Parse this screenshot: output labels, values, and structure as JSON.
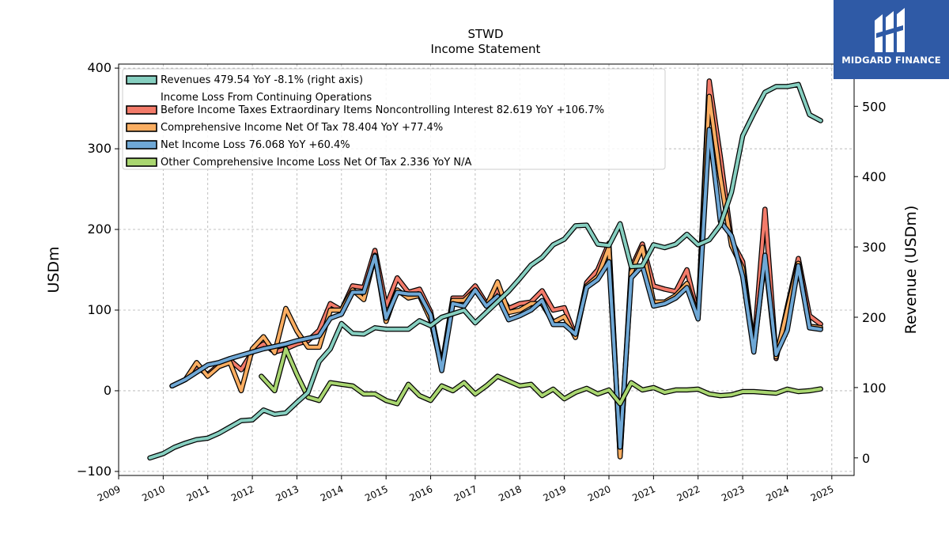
{
  "chart_data": {
    "type": "line",
    "title": "STWD",
    "subtitle": "Income Statement",
    "ylabel": "USDm",
    "y2label": "Revenue (USDm)",
    "ylim": [
      -105,
      405
    ],
    "y2lim": [
      -25,
      560
    ],
    "xlim": [
      2009.0,
      2025.5
    ],
    "grid": true,
    "legend_position": "top-left",
    "x_ticks": [
      2009,
      2010,
      2011,
      2012,
      2013,
      2014,
      2015,
      2016,
      2017,
      2018,
      2019,
      2020,
      2021,
      2022,
      2023,
      2024,
      2025
    ],
    "y_ticks": [
      -100,
      0,
      100,
      200,
      300,
      400
    ],
    "y2_ticks": [
      0,
      100,
      200,
      300,
      400,
      500
    ],
    "series": [
      {
        "name": "Revenues  479.54 YoY -8.1% (right axis)",
        "axis": "right",
        "color": "#86cfc0",
        "points": [
          [
            2009.7,
            0
          ],
          [
            2010.0,
            6
          ],
          [
            2010.25,
            15
          ],
          [
            2010.5,
            21
          ],
          [
            2010.75,
            26
          ],
          [
            2011.0,
            28
          ],
          [
            2011.25,
            35
          ],
          [
            2011.5,
            44
          ],
          [
            2011.75,
            53
          ],
          [
            2012.0,
            54
          ],
          [
            2012.25,
            68
          ],
          [
            2012.5,
            62
          ],
          [
            2012.75,
            64
          ],
          [
            2013.0,
            79
          ],
          [
            2013.25,
            93
          ],
          [
            2013.5,
            137
          ],
          [
            2013.75,
            155
          ],
          [
            2014.0,
            191
          ],
          [
            2014.25,
            177
          ],
          [
            2014.5,
            176
          ],
          [
            2014.75,
            185
          ],
          [
            2015.0,
            183
          ],
          [
            2015.25,
            183
          ],
          [
            2015.5,
            183
          ],
          [
            2015.75,
            195
          ],
          [
            2016.0,
            188
          ],
          [
            2016.25,
            200
          ],
          [
            2016.5,
            205
          ],
          [
            2016.75,
            210
          ],
          [
            2017.0,
            192
          ],
          [
            2017.25,
            207
          ],
          [
            2017.5,
            222
          ],
          [
            2017.75,
            237
          ],
          [
            2018.0,
            255
          ],
          [
            2018.25,
            274
          ],
          [
            2018.5,
            285
          ],
          [
            2018.75,
            303
          ],
          [
            2019.0,
            311
          ],
          [
            2019.25,
            330
          ],
          [
            2019.5,
            331
          ],
          [
            2019.75,
            304
          ],
          [
            2020.0,
            302
          ],
          [
            2020.25,
            333
          ],
          [
            2020.5,
            272
          ],
          [
            2020.75,
            273
          ],
          [
            2021.0,
            303
          ],
          [
            2021.25,
            299
          ],
          [
            2021.5,
            304
          ],
          [
            2021.75,
            318
          ],
          [
            2022.0,
            303
          ],
          [
            2022.25,
            310
          ],
          [
            2022.5,
            331
          ],
          [
            2022.75,
            378
          ],
          [
            2023.0,
            458
          ],
          [
            2023.25,
            490
          ],
          [
            2023.5,
            520
          ],
          [
            2023.75,
            528
          ],
          [
            2024.0,
            528
          ],
          [
            2024.25,
            531
          ],
          [
            2024.5,
            488
          ],
          [
            2024.75,
            479.54
          ]
        ]
      },
      {
        "name": "Income Loss From Continuing Operations\nBefore Income Taxes Extraordinary Items Noncontrolling Interest  82.619 YoY +106.7%",
        "axis": "left",
        "color": "#f37b6a",
        "points": [
          [
            2010.2,
            6
          ],
          [
            2010.5,
            14
          ],
          [
            2010.75,
            30
          ],
          [
            2011.0,
            20
          ],
          [
            2011.25,
            32
          ],
          [
            2011.5,
            38
          ],
          [
            2011.75,
            26
          ],
          [
            2012.0,
            48
          ],
          [
            2012.25,
            58
          ],
          [
            2012.5,
            48
          ],
          [
            2012.75,
            52
          ],
          [
            2013.0,
            58
          ],
          [
            2013.25,
            62
          ],
          [
            2013.5,
            75
          ],
          [
            2013.75,
            108
          ],
          [
            2014.0,
            100
          ],
          [
            2014.25,
            130
          ],
          [
            2014.5,
            128
          ],
          [
            2014.75,
            174
          ],
          [
            2015.0,
            105
          ],
          [
            2015.25,
            140
          ],
          [
            2015.5,
            122
          ],
          [
            2015.75,
            126
          ],
          [
            2016.0,
            98
          ],
          [
            2016.25,
            30
          ],
          [
            2016.5,
            115
          ],
          [
            2016.75,
            115
          ],
          [
            2017.0,
            130
          ],
          [
            2017.25,
            108
          ],
          [
            2017.5,
            125
          ],
          [
            2017.75,
            102
          ],
          [
            2018.0,
            108
          ],
          [
            2018.25,
            110
          ],
          [
            2018.5,
            124
          ],
          [
            2018.75,
            100
          ],
          [
            2019.0,
            103
          ],
          [
            2019.25,
            68
          ],
          [
            2019.5,
            134
          ],
          [
            2019.75,
            150
          ],
          [
            2020.0,
            183
          ],
          [
            2020.25,
            -80
          ],
          [
            2020.5,
            152
          ],
          [
            2020.75,
            182
          ],
          [
            2021.0,
            130
          ],
          [
            2021.25,
            126
          ],
          [
            2021.5,
            123
          ],
          [
            2021.75,
            150
          ],
          [
            2022.0,
            93
          ],
          [
            2022.25,
            384
          ],
          [
            2022.5,
            290
          ],
          [
            2022.75,
            186
          ],
          [
            2023.0,
            160
          ],
          [
            2023.25,
            52
          ],
          [
            2023.5,
            225
          ],
          [
            2023.75,
            40
          ],
          [
            2024.0,
            104
          ],
          [
            2024.25,
            164
          ],
          [
            2024.5,
            93
          ],
          [
            2024.75,
            82.619
          ]
        ]
      },
      {
        "name": "Comprehensive Income Net Of Tax  78.404 YoY +77.4%",
        "axis": "left",
        "color": "#fbae62",
        "points": [
          [
            2010.2,
            6
          ],
          [
            2010.5,
            14
          ],
          [
            2010.75,
            35
          ],
          [
            2011.0,
            18
          ],
          [
            2011.25,
            30
          ],
          [
            2011.5,
            35
          ],
          [
            2011.75,
            0
          ],
          [
            2012.0,
            52
          ],
          [
            2012.25,
            67
          ],
          [
            2012.5,
            47
          ],
          [
            2012.75,
            102
          ],
          [
            2013.0,
            74
          ],
          [
            2013.25,
            54
          ],
          [
            2013.5,
            54
          ],
          [
            2013.75,
            100
          ],
          [
            2014.0,
            100
          ],
          [
            2014.25,
            125
          ],
          [
            2014.5,
            113
          ],
          [
            2014.75,
            168
          ],
          [
            2015.0,
            86
          ],
          [
            2015.25,
            125
          ],
          [
            2015.5,
            115
          ],
          [
            2015.75,
            118
          ],
          [
            2016.0,
            88
          ],
          [
            2016.25,
            28
          ],
          [
            2016.5,
            112
          ],
          [
            2016.75,
            112
          ],
          [
            2017.0,
            125
          ],
          [
            2017.25,
            105
          ],
          [
            2017.5,
            135
          ],
          [
            2017.75,
            97
          ],
          [
            2018.0,
            100
          ],
          [
            2018.25,
            108
          ],
          [
            2018.5,
            108
          ],
          [
            2018.75,
            85
          ],
          [
            2019.0,
            92
          ],
          [
            2019.25,
            66
          ],
          [
            2019.5,
            130
          ],
          [
            2019.75,
            142
          ],
          [
            2020.0,
            178
          ],
          [
            2020.25,
            -82
          ],
          [
            2020.5,
            147
          ],
          [
            2020.75,
            178
          ],
          [
            2021.0,
            110
          ],
          [
            2021.25,
            110
          ],
          [
            2021.5,
            118
          ],
          [
            2021.75,
            133
          ],
          [
            2022.0,
            92
          ],
          [
            2022.25,
            365
          ],
          [
            2022.5,
            265
          ],
          [
            2022.75,
            180
          ],
          [
            2023.0,
            152
          ],
          [
            2023.25,
            50
          ],
          [
            2023.5,
            165
          ],
          [
            2023.75,
            42
          ],
          [
            2024.0,
            100
          ],
          [
            2024.25,
            158
          ],
          [
            2024.5,
            80
          ],
          [
            2024.75,
            78.404
          ]
        ]
      },
      {
        "name": "Net Income Loss  76.068 YoY +60.4%",
        "axis": "left",
        "color": "#6fa8d6",
        "points": [
          [
            2010.2,
            6
          ],
          [
            2010.5,
            14
          ],
          [
            2010.75,
            23
          ],
          [
            2011.0,
            32
          ],
          [
            2011.25,
            35
          ],
          [
            2011.5,
            40
          ],
          [
            2011.75,
            44
          ],
          [
            2012.0,
            48
          ],
          [
            2012.25,
            52
          ],
          [
            2012.5,
            55
          ],
          [
            2012.75,
            58
          ],
          [
            2013.0,
            62
          ],
          [
            2013.25,
            65
          ],
          [
            2013.5,
            68
          ],
          [
            2013.75,
            90
          ],
          [
            2014.0,
            95
          ],
          [
            2014.25,
            122
          ],
          [
            2014.5,
            122
          ],
          [
            2014.75,
            167
          ],
          [
            2015.0,
            90
          ],
          [
            2015.25,
            122
          ],
          [
            2015.5,
            120
          ],
          [
            2015.75,
            120
          ],
          [
            2016.0,
            94
          ],
          [
            2016.25,
            25
          ],
          [
            2016.5,
            108
          ],
          [
            2016.75,
            105
          ],
          [
            2017.0,
            125
          ],
          [
            2017.25,
            105
          ],
          [
            2017.5,
            117
          ],
          [
            2017.75,
            88
          ],
          [
            2018.0,
            93
          ],
          [
            2018.25,
            100
          ],
          [
            2018.5,
            112
          ],
          [
            2018.75,
            82
          ],
          [
            2019.0,
            82
          ],
          [
            2019.25,
            70
          ],
          [
            2019.5,
            128
          ],
          [
            2019.75,
            138
          ],
          [
            2020.0,
            160
          ],
          [
            2020.25,
            -70
          ],
          [
            2020.5,
            140
          ],
          [
            2020.75,
            155
          ],
          [
            2021.0,
            105
          ],
          [
            2021.25,
            108
          ],
          [
            2021.5,
            115
          ],
          [
            2021.75,
            128
          ],
          [
            2022.0,
            89
          ],
          [
            2022.25,
            324
          ],
          [
            2022.5,
            210
          ],
          [
            2022.75,
            192
          ],
          [
            2023.0,
            142
          ],
          [
            2023.25,
            48
          ],
          [
            2023.5,
            168
          ],
          [
            2023.75,
            45
          ],
          [
            2024.0,
            75
          ],
          [
            2024.25,
            155
          ],
          [
            2024.5,
            78
          ],
          [
            2024.75,
            76.068
          ]
        ]
      },
      {
        "name": "Other Comprehensive Income Loss Net Of Tax  2.336 YoY N/A",
        "axis": "left",
        "color": "#a9d670",
        "points": [
          [
            2012.2,
            18
          ],
          [
            2012.5,
            0
          ],
          [
            2012.75,
            52
          ],
          [
            2013.0,
            20
          ],
          [
            2013.25,
            -8
          ],
          [
            2013.5,
            -12
          ],
          [
            2013.75,
            10
          ],
          [
            2014.0,
            8
          ],
          [
            2014.25,
            6
          ],
          [
            2014.5,
            -4
          ],
          [
            2014.75,
            -4
          ],
          [
            2015.0,
            -12
          ],
          [
            2015.25,
            -16
          ],
          [
            2015.5,
            8
          ],
          [
            2015.75,
            -6
          ],
          [
            2016.0,
            -12
          ],
          [
            2016.25,
            6
          ],
          [
            2016.5,
            0
          ],
          [
            2016.75,
            10
          ],
          [
            2017.0,
            -4
          ],
          [
            2017.25,
            6
          ],
          [
            2017.5,
            18
          ],
          [
            2017.75,
            12
          ],
          [
            2018.0,
            6
          ],
          [
            2018.25,
            8
          ],
          [
            2018.5,
            -6
          ],
          [
            2018.75,
            2
          ],
          [
            2019.0,
            -10
          ],
          [
            2019.25,
            -2
          ],
          [
            2019.5,
            3
          ],
          [
            2019.75,
            -4
          ],
          [
            2020.0,
            1
          ],
          [
            2020.25,
            -16
          ],
          [
            2020.5,
            10
          ],
          [
            2020.75,
            1
          ],
          [
            2021.0,
            4
          ],
          [
            2021.25,
            -2
          ],
          [
            2021.5,
            1
          ],
          [
            2021.75,
            1
          ],
          [
            2022.0,
            2
          ],
          [
            2022.25,
            -4
          ],
          [
            2022.5,
            -6
          ],
          [
            2022.75,
            -5
          ],
          [
            2023.0,
            -1
          ],
          [
            2023.25,
            -1
          ],
          [
            2023.5,
            -2
          ],
          [
            2023.75,
            -3
          ],
          [
            2024.0,
            2
          ],
          [
            2024.25,
            -1
          ],
          [
            2024.5,
            0
          ],
          [
            2024.75,
            2.336
          ]
        ]
      }
    ]
  },
  "brand": {
    "name": "MIDGARD FINANCE",
    "background": "#2f5aa6"
  }
}
